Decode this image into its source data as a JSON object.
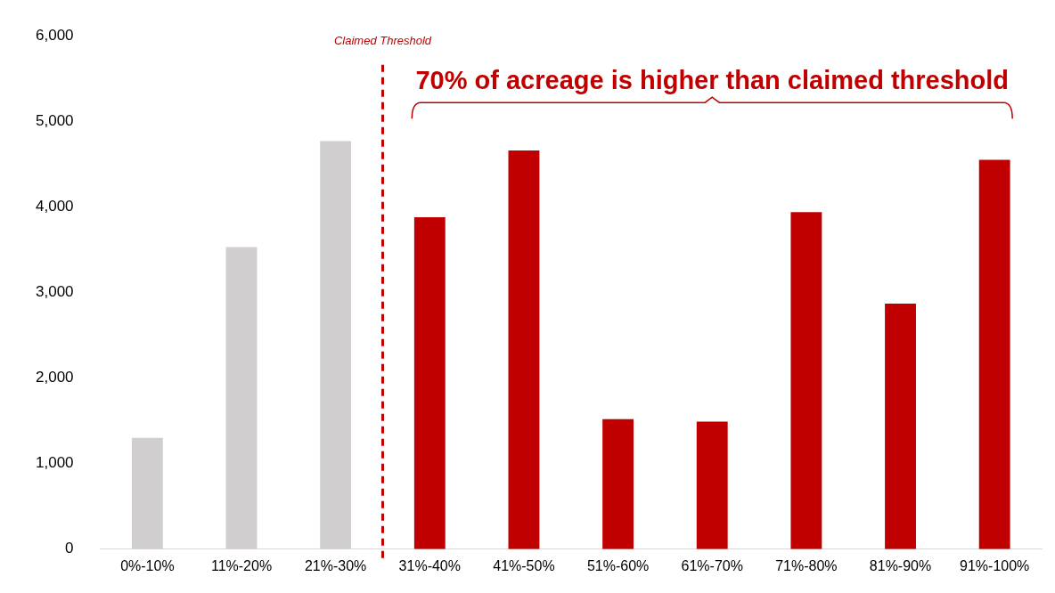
{
  "chart_data": {
    "type": "bar",
    "categories": [
      "0%-10%",
      "11%-20%",
      "21%-30%",
      "31%-40%",
      "41%-50%",
      "51%-60%",
      "61%-70%",
      "71%-80%",
      "81%-90%",
      "91%-100%"
    ],
    "values": [
      1300,
      3530,
      4770,
      3880,
      4660,
      1520,
      1490,
      3940,
      2870,
      4550
    ],
    "colors": [
      "#d0cece",
      "#d0cece",
      "#d0cece",
      "#c00000",
      "#c00000",
      "#c00000",
      "#c00000",
      "#c00000",
      "#c00000",
      "#c00000"
    ],
    "ylim": [
      0,
      6000
    ],
    "yticks": [
      0,
      {
        "value": 1000,
        "label": "1,000"
      },
      {
        "value": 2000,
        "label": "2,000"
      },
      {
        "value": 3000,
        "label": "3,000"
      },
      {
        "value": 4000,
        "label": "4,000"
      },
      {
        "value": 5000,
        "label": "5,000"
      },
      {
        "value": 6000,
        "label": "6,000"
      }
    ],
    "ref_lines": [
      {
        "axis": "x",
        "value": "21%-30%",
        "label": "Claimed Threshold",
        "color": "#c00000",
        "line_style": "dashed"
      }
    ],
    "annotations": [
      "70% of acreage is higher than claimed threshold"
    ],
    "grid": false,
    "legend": false
  }
}
